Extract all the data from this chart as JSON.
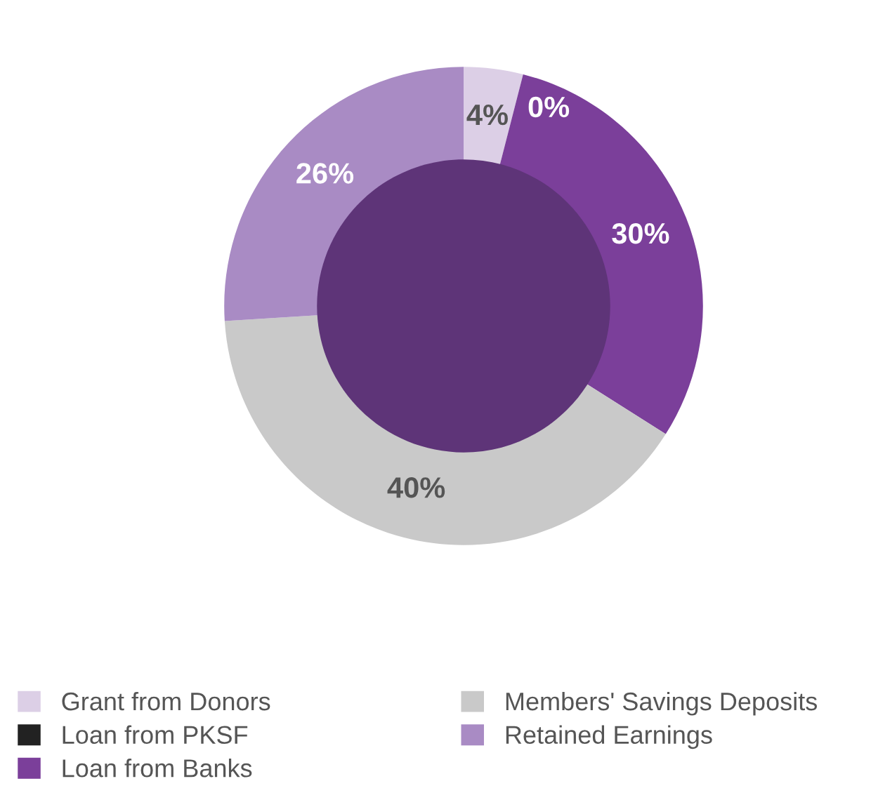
{
  "chart_data": {
    "type": "donut",
    "categories": [
      "Grant from Donors",
      "Loan from PKSF",
      "Loan from Banks",
      "Members' Savings Deposits",
      "Retained Earnings"
    ],
    "values": [
      4,
      0,
      30,
      40,
      26
    ],
    "colors": [
      "#dccfe6",
      "#222222",
      "#7b3f9a",
      "#c9c9c9",
      "#a98bc4"
    ],
    "value_labels": [
      "4%",
      "0%",
      "30%",
      "40%",
      "26%"
    ],
    "legend": "bottom"
  }
}
